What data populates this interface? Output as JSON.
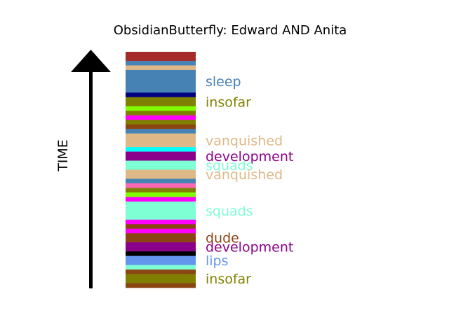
{
  "chart_data": {
    "type": "bar",
    "title": "ObsidianButterfly: Edward AND Anita",
    "ylabel": "TIME",
    "segments": [
      {
        "color": "#a52a2a",
        "height": 2
      },
      {
        "color": "#4682b4",
        "height": 1
      },
      {
        "color": "#deb887",
        "height": 1
      },
      {
        "color": "#4682b4",
        "height": 5,
        "label": "sleep"
      },
      {
        "color": "#000080",
        "height": 1
      },
      {
        "color": "#808000",
        "height": 2,
        "label": "insofar"
      },
      {
        "color": "#7fff00",
        "height": 1
      },
      {
        "color": "#808000",
        "height": 1
      },
      {
        "color": "#ff00ff",
        "height": 1
      },
      {
        "color": "#808000",
        "height": 1
      },
      {
        "color": "#8b4513",
        "height": 1
      },
      {
        "color": "#4682b4",
        "height": 1
      },
      {
        "color": "#deb887",
        "height": 3,
        "label": "vanquished"
      },
      {
        "color": "#00ffff",
        "height": 1
      },
      {
        "color": "#8b008b",
        "height": 2,
        "label": "development"
      },
      {
        "color": "#7fffd4",
        "height": 2,
        "label": "squads"
      },
      {
        "color": "#deb887",
        "height": 2,
        "label": "vanquished"
      },
      {
        "color": "#4682b4",
        "height": 1
      },
      {
        "color": "#ff69b4",
        "height": 1
      },
      {
        "color": "#808000",
        "height": 1
      },
      {
        "color": "#7fff00",
        "height": 1
      },
      {
        "color": "#ff00ff",
        "height": 1
      },
      {
        "color": "#7fffd4",
        "height": 4,
        "label": "squads"
      },
      {
        "color": "#ff00ff",
        "height": 1
      },
      {
        "color": "#8b4513",
        "height": 1
      },
      {
        "color": "#ff00ff",
        "height": 1
      },
      {
        "color": "#8b4513",
        "height": 2,
        "label": "dude"
      },
      {
        "color": "#8b008b",
        "height": 2,
        "label": "development"
      },
      {
        "color": "#000000",
        "height": 1
      },
      {
        "color": "#6495ed",
        "height": 2,
        "label": "lips"
      },
      {
        "color": "#7fffd4",
        "height": 1
      },
      {
        "color": "#8b4513",
        "height": 1
      },
      {
        "color": "#808000",
        "height": 2,
        "label": "insofar"
      },
      {
        "color": "#8b4513",
        "height": 1
      }
    ]
  }
}
